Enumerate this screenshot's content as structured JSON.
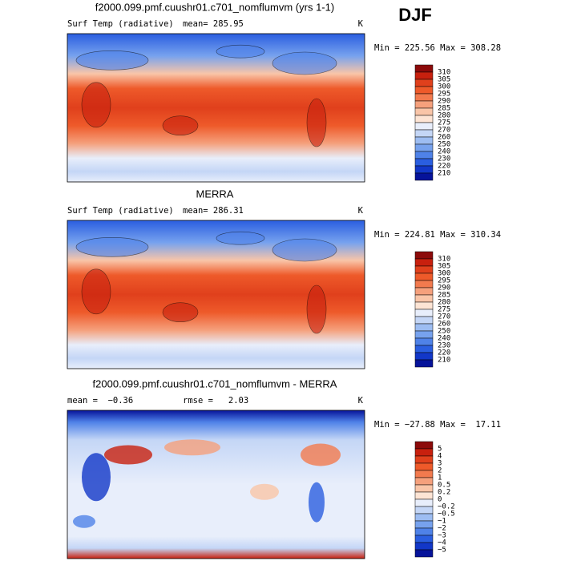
{
  "season": "DJF",
  "panels": [
    {
      "title": "f2000.099.pmf.cuushr01.c701_nomflumvm (yrs 1-1)",
      "variable": "Surf Temp (radiative)",
      "mean": "mean= 285.95",
      "units": "K",
      "range": "Min = 225.56 Max = 308.28",
      "colorbar": {
        "labels": [
          "310",
          "305",
          "300",
          "295",
          "290",
          "285",
          "280",
          "275",
          "270",
          "260",
          "250",
          "240",
          "230",
          "220",
          "210"
        ],
        "colors": [
          "#8c0a0a",
          "#c8200e",
          "#e0401c",
          "#ee5a2a",
          "#f27a4e",
          "#f5a07c",
          "#f9c5a8",
          "#fde4d4",
          "#e8eefb",
          "#c4d6f6",
          "#9dbdf2",
          "#77a2ee",
          "#4f82e8",
          "#2a5ee0",
          "#1237c8",
          "#06139a"
        ]
      }
    },
    {
      "title": "MERRA",
      "variable": "Surf Temp (radiative)",
      "mean": "mean= 286.31",
      "units": "K",
      "range": "Min = 224.81 Max = 310.34",
      "colorbar": {
        "labels": [
          "310",
          "305",
          "300",
          "295",
          "290",
          "285",
          "280",
          "275",
          "270",
          "260",
          "250",
          "240",
          "230",
          "220",
          "210"
        ],
        "colors": [
          "#8c0a0a",
          "#c8200e",
          "#e0401c",
          "#ee5a2a",
          "#f27a4e",
          "#f5a07c",
          "#f9c5a8",
          "#fde4d4",
          "#e8eefb",
          "#c4d6f6",
          "#9dbdf2",
          "#77a2ee",
          "#4f82e8",
          "#2a5ee0",
          "#1237c8",
          "#06139a"
        ]
      }
    },
    {
      "title": "f2000.099.pmf.cuushr01.c701_nomflumvm - MERRA",
      "mean": "mean =  −0.36",
      "rmse": "rmse =   2.03",
      "units": "K",
      "range": "Min = −27.88 Max =  17.11",
      "colorbar": {
        "labels": [
          "5",
          "4",
          "3",
          "2",
          "1",
          "0.5",
          "0.2",
          "0",
          "−0.2",
          "−0.5",
          "−1",
          "−2",
          "−3",
          "−4",
          "−5"
        ],
        "colors": [
          "#8c0a0a",
          "#c8200e",
          "#e0401c",
          "#ee5a2a",
          "#f27a4e",
          "#f5a07c",
          "#f9c5a8",
          "#fde4d4",
          "#e8eefb",
          "#c4d6f6",
          "#9dbdf2",
          "#77a2ee",
          "#4f82e8",
          "#2a5ee0",
          "#1237c8",
          "#06139a"
        ]
      }
    }
  ]
}
